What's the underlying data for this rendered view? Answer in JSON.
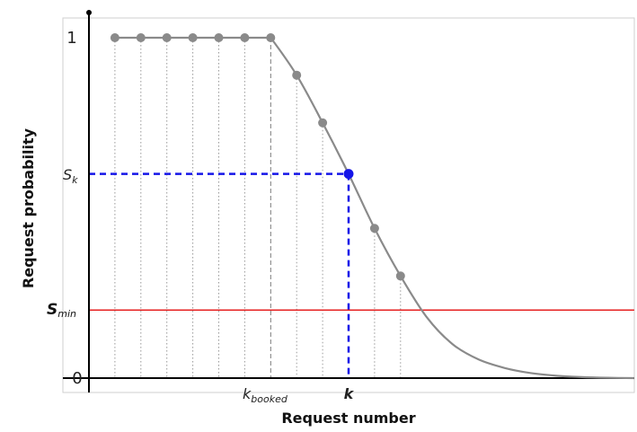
{
  "chart_data": {
    "type": "line",
    "xlabel": "Request number",
    "ylabel": "Request probability",
    "y_ticks": [
      {
        "value": 0,
        "label": "0"
      },
      {
        "value": 1,
        "label": "1"
      }
    ],
    "y_markers": [
      {
        "id": "sk",
        "value": 0.6,
        "label": "S",
        "sub": "k",
        "style": "italic"
      },
      {
        "id": "smin",
        "value": 0.2,
        "label": "S",
        "sub": "min",
        "style": "bold-italic"
      }
    ],
    "x_markers": [
      {
        "id": "kbooked",
        "value": 7,
        "label": "k",
        "sub": "booked"
      },
      {
        "id": "k",
        "value": 10,
        "label": "k",
        "sub": ""
      }
    ],
    "xlim": [
      0,
      21
    ],
    "ylim": [
      0,
      1
    ],
    "points": [
      {
        "x": 1,
        "y": 1.0
      },
      {
        "x": 2,
        "y": 1.0
      },
      {
        "x": 3,
        "y": 1.0
      },
      {
        "x": 4,
        "y": 1.0
      },
      {
        "x": 5,
        "y": 1.0
      },
      {
        "x": 6,
        "y": 1.0
      },
      {
        "x": 7,
        "y": 1.0
      },
      {
        "x": 8,
        "y": 0.89
      },
      {
        "x": 9,
        "y": 0.75
      },
      {
        "x": 10,
        "y": 0.6
      },
      {
        "x": 11,
        "y": 0.44
      },
      {
        "x": 12,
        "y": 0.3
      }
    ],
    "highlight_point": {
      "x": 10,
      "y": 0.6
    },
    "curve": [
      {
        "x": 7,
        "y": 1.0
      },
      {
        "x": 8,
        "y": 0.89
      },
      {
        "x": 9,
        "y": 0.75
      },
      {
        "x": 10,
        "y": 0.6
      },
      {
        "x": 11,
        "y": 0.44
      },
      {
        "x": 12,
        "y": 0.3
      },
      {
        "x": 13,
        "y": 0.18
      },
      {
        "x": 14,
        "y": 0.1
      },
      {
        "x": 15,
        "y": 0.055
      },
      {
        "x": 16,
        "y": 0.03
      },
      {
        "x": 17,
        "y": 0.015
      },
      {
        "x": 18,
        "y": 0.007
      },
      {
        "x": 19,
        "y": 0.003
      },
      {
        "x": 20,
        "y": 0.001
      },
      {
        "x": 21,
        "y": 0.0
      }
    ],
    "colors": {
      "curve": "#8a8a8a",
      "points": "#8a8a8a",
      "highlight": "#1515e8",
      "smin_line": "#e62020",
      "grid_dotted": "#9a9a9a",
      "axes": "#000000"
    }
  }
}
